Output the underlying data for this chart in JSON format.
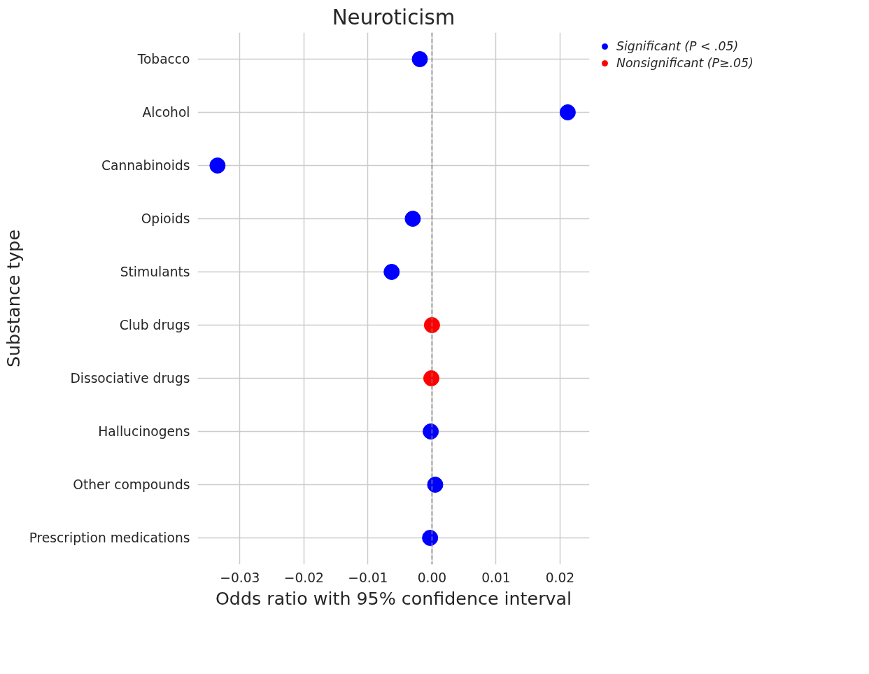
{
  "chart_data": {
    "type": "scatter",
    "title": "Neuroticism",
    "xlabel": "Odds ratio with 95% confidence interval",
    "ylabel": "Substance type",
    "orientation": "horizontal",
    "categories": [
      "Tobacco",
      "Alcohol",
      "Cannabinoids",
      "Opioids",
      "Stimulants",
      "Club drugs",
      "Dissociative drugs",
      "Hallucinogens",
      "Other compounds",
      "Prescription medications"
    ],
    "series": [
      {
        "name": "Significant (P < .05)",
        "color": "#0000ff",
        "values": [
          -0.0019,
          0.0212,
          -0.0335,
          -0.003,
          -0.0063,
          null,
          null,
          -0.0002,
          0.0005,
          -0.0003
        ]
      },
      {
        "name": "Nonsignificant (P≥.05)",
        "color": "#ff0000",
        "values": [
          null,
          null,
          null,
          null,
          null,
          0.0,
          -0.0001,
          null,
          null,
          null
        ]
      }
    ],
    "xlim": [
      -0.0366,
      0.0246
    ],
    "xticks": [
      {
        "value": -0.03,
        "label": "−0.03"
      },
      {
        "value": -0.02,
        "label": "−0.02"
      },
      {
        "value": -0.01,
        "label": "−0.01"
      },
      {
        "value": 0,
        "label": "0.00"
      },
      {
        "value": 0.01,
        "label": "0.01"
      },
      {
        "value": 0.02,
        "label": "0.02"
      }
    ],
    "ref_lines": [
      {
        "axis": "x",
        "value": 0,
        "color": "#808080",
        "line_style": "dashed"
      }
    ],
    "grid": true,
    "legend": "top right",
    "marker": "circle"
  }
}
